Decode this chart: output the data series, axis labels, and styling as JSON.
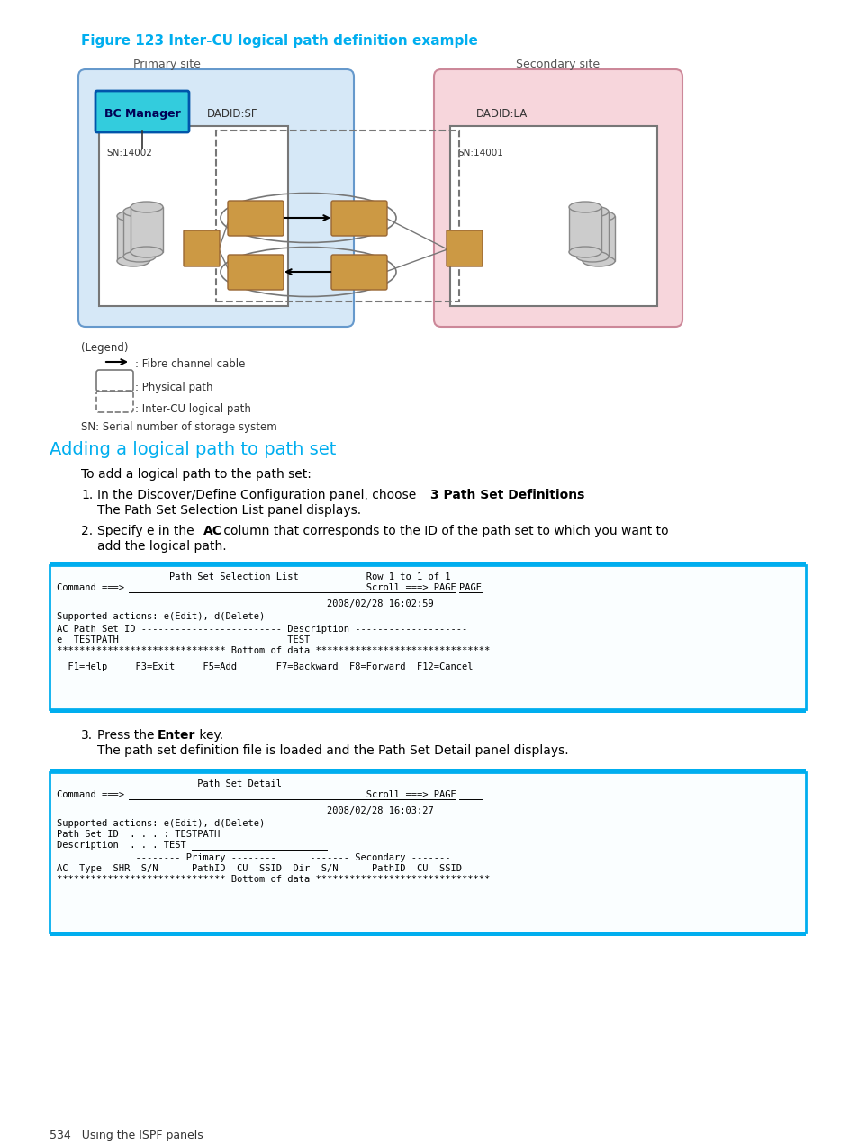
{
  "figure_title": "Figure 123 Inter-CU logical path definition example",
  "figure_title_color": "#00AEEF",
  "section_title": "Adding a logical path to path set",
  "section_title_color": "#00AEEF",
  "bg_color": "#ffffff",
  "page_footer": "534   Using the ISPF panels",
  "body_text_color": "#000000",
  "terminal_bg": "#ffffff",
  "terminal_border": "#00AEEF",
  "mono_font": "monospace",
  "para_font": "DejaVu Sans",
  "panel1_title_line1": "                    Path Set Selection List            Row 1 to 1 of 1",
  "panel1_cmd": "Command ===>                                           Scroll ===> PAGE",
  "panel1_date": "                                                2008/02/28 16:02:59",
  "panel1_actions": "Supported actions: e(Edit), d(Delete)",
  "panel1_header": "AC Path Set ID ------------------------- Description --------------------",
  "panel1_data": "e  TESTPATH                              TEST",
  "panel1_bottom": "****************************** Bottom of data *******************************",
  "panel1_fkeys": "  F1=Help     F3=Exit     F5=Add       F7=Backward  F8=Forward  F12=Cancel",
  "panel2_title_line": "                         Path Set Detail",
  "panel2_cmd": "Command ===>                                           Scroll ===> PAGE",
  "panel2_date": "                                                2008/02/28 16:03:27",
  "panel2_actions": "Supported actions: e(Edit), d(Delete)",
  "panel2_pathsetid": "Path Set ID  . . . : TESTPATH",
  "panel2_desc": "Description  . . . TEST",
  "panel2_primary": "              -------- Primary --------      ------- Secondary -------",
  "panel2_colhdr": "AC  Type  SHR  S/N      PathID  CU  SSID  Dir  S/N      PathID  CU  SSID",
  "panel2_bottom": "****************************** Bottom of data *******************************"
}
